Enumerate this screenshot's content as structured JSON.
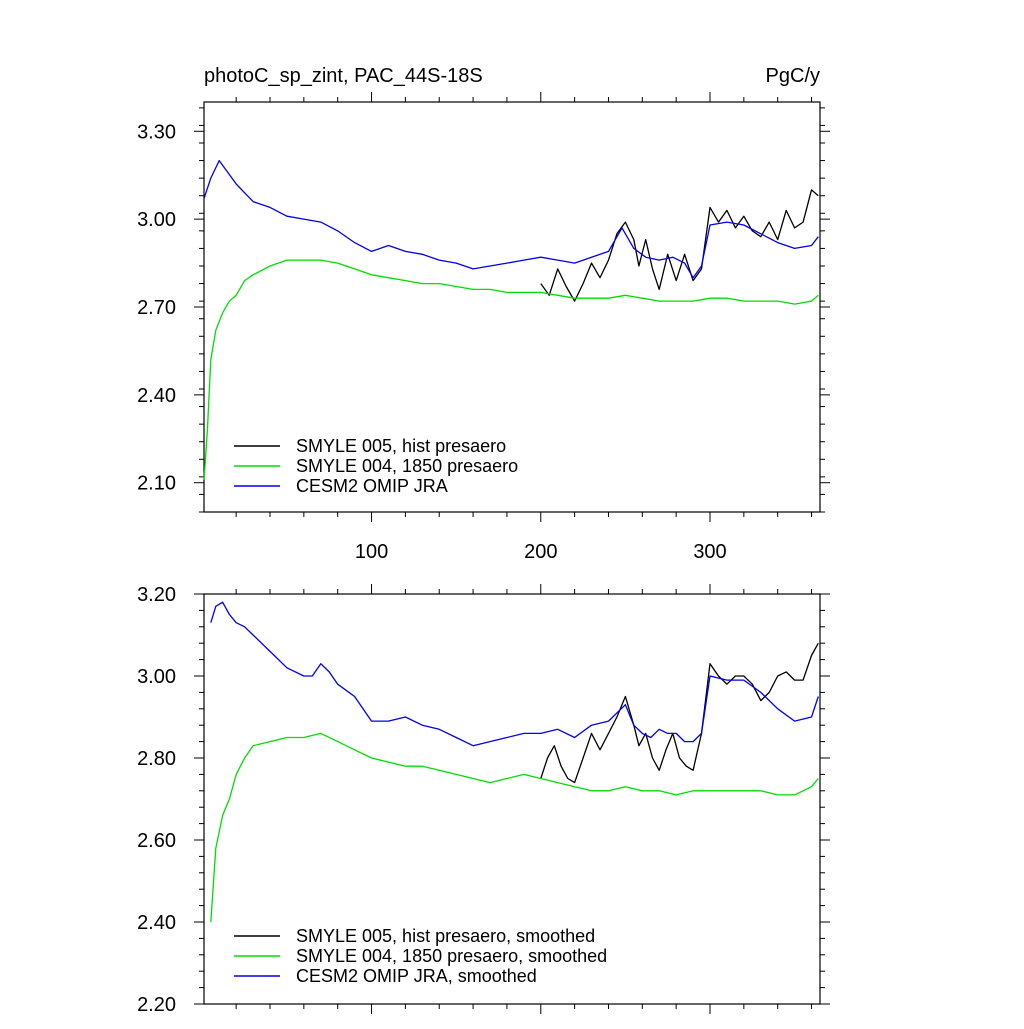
{
  "chart_data": [
    {
      "type": "line",
      "title_left": "photoC_sp_zint, PAC_44S-18S",
      "title_right": "PgC/y",
      "xlabel": "",
      "ylabel": "",
      "xlim": [
        1,
        365
      ],
      "ylim": [
        2.0,
        3.4
      ],
      "xticks": [
        100,
        200,
        300
      ],
      "xtick_labels": [
        "100",
        "200",
        "300"
      ],
      "yticks": [
        2.1,
        2.4,
        2.7,
        3.0,
        3.3
      ],
      "ytick_labels": [
        "2.10",
        "2.40",
        "2.70",
        "3.00",
        "3.30"
      ],
      "grid": false,
      "legend_position": "bottom-left",
      "series": [
        {
          "name": "SMYLE 005, hist presaero",
          "color": "#000000",
          "points": [
            [
              200,
              2.78
            ],
            [
              205,
              2.74
            ],
            [
              210,
              2.83
            ],
            [
              215,
              2.77
            ],
            [
              220,
              2.72
            ],
            [
              225,
              2.78
            ],
            [
              230,
              2.85
            ],
            [
              235,
              2.8
            ],
            [
              240,
              2.86
            ],
            [
              245,
              2.95
            ],
            [
              250,
              2.99
            ],
            [
              255,
              2.93
            ],
            [
              258,
              2.84
            ],
            [
              262,
              2.93
            ],
            [
              266,
              2.83
            ],
            [
              270,
              2.76
            ],
            [
              275,
              2.88
            ],
            [
              280,
              2.79
            ],
            [
              285,
              2.88
            ],
            [
              290,
              2.79
            ],
            [
              295,
              2.83
            ],
            [
              300,
              3.04
            ],
            [
              305,
              2.99
            ],
            [
              310,
              3.03
            ],
            [
              315,
              2.97
            ],
            [
              320,
              3.01
            ],
            [
              325,
              2.96
            ],
            [
              330,
              2.94
            ],
            [
              335,
              2.99
            ],
            [
              340,
              2.93
            ],
            [
              345,
              3.03
            ],
            [
              350,
              2.97
            ],
            [
              355,
              2.99
            ],
            [
              360,
              3.1
            ],
            [
              364,
              3.08
            ]
          ]
        },
        {
          "name": "SMYLE 004, 1850 presaero",
          "color": "#00dd00",
          "points": [
            [
              1,
              2.11
            ],
            [
              3,
              2.28
            ],
            [
              5,
              2.52
            ],
            [
              8,
              2.62
            ],
            [
              12,
              2.68
            ],
            [
              16,
              2.72
            ],
            [
              20,
              2.74
            ],
            [
              25,
              2.79
            ],
            [
              30,
              2.81
            ],
            [
              40,
              2.84
            ],
            [
              50,
              2.86
            ],
            [
              60,
              2.86
            ],
            [
              70,
              2.86
            ],
            [
              80,
              2.85
            ],
            [
              90,
              2.83
            ],
            [
              100,
              2.81
            ],
            [
              110,
              2.8
            ],
            [
              120,
              2.79
            ],
            [
              130,
              2.78
            ],
            [
              140,
              2.78
            ],
            [
              150,
              2.77
            ],
            [
              160,
              2.76
            ],
            [
              170,
              2.76
            ],
            [
              180,
              2.75
            ],
            [
              190,
              2.75
            ],
            [
              200,
              2.75
            ],
            [
              210,
              2.74
            ],
            [
              220,
              2.73
            ],
            [
              230,
              2.73
            ],
            [
              240,
              2.73
            ],
            [
              250,
              2.74
            ],
            [
              260,
              2.73
            ],
            [
              270,
              2.72
            ],
            [
              280,
              2.72
            ],
            [
              290,
              2.72
            ],
            [
              300,
              2.73
            ],
            [
              310,
              2.73
            ],
            [
              320,
              2.72
            ],
            [
              330,
              2.72
            ],
            [
              340,
              2.72
            ],
            [
              350,
              2.71
            ],
            [
              360,
              2.72
            ],
            [
              364,
              2.74
            ]
          ]
        },
        {
          "name": "CESM2 OMIP JRA",
          "color": "#0000ee",
          "points": [
            [
              1,
              3.07
            ],
            [
              5,
              3.14
            ],
            [
              10,
              3.2
            ],
            [
              15,
              3.16
            ],
            [
              20,
              3.12
            ],
            [
              25,
              3.09
            ],
            [
              30,
              3.06
            ],
            [
              40,
              3.04
            ],
            [
              50,
              3.01
            ],
            [
              60,
              3.0
            ],
            [
              70,
              2.99
            ],
            [
              80,
              2.96
            ],
            [
              90,
              2.92
            ],
            [
              100,
              2.89
            ],
            [
              110,
              2.91
            ],
            [
              120,
              2.89
            ],
            [
              130,
              2.88
            ],
            [
              140,
              2.86
            ],
            [
              150,
              2.85
            ],
            [
              160,
              2.83
            ],
            [
              170,
              2.84
            ],
            [
              180,
              2.85
            ],
            [
              190,
              2.86
            ],
            [
              200,
              2.87
            ],
            [
              210,
              2.86
            ],
            [
              220,
              2.85
            ],
            [
              230,
              2.87
            ],
            [
              240,
              2.89
            ],
            [
              248,
              2.97
            ],
            [
              255,
              2.9
            ],
            [
              262,
              2.87
            ],
            [
              270,
              2.86
            ],
            [
              278,
              2.87
            ],
            [
              285,
              2.85
            ],
            [
              290,
              2.8
            ],
            [
              295,
              2.84
            ],
            [
              300,
              2.98
            ],
            [
              310,
              2.99
            ],
            [
              320,
              2.98
            ],
            [
              330,
              2.95
            ],
            [
              340,
              2.92
            ],
            [
              350,
              2.9
            ],
            [
              360,
              2.91
            ],
            [
              364,
              2.94
            ]
          ]
        }
      ]
    },
    {
      "type": "line",
      "title_left": "",
      "title_right": "",
      "xlabel": "",
      "ylabel": "",
      "xlim": [
        1,
        365
      ],
      "ylim": [
        2.2,
        3.2
      ],
      "xticks": [
        100,
        200,
        300
      ],
      "xtick_labels": [],
      "yticks": [
        2.2,
        2.4,
        2.6,
        2.8,
        3.0,
        3.2
      ],
      "ytick_labels": [
        "2.20",
        "2.40",
        "2.60",
        "2.80",
        "3.00",
        "3.20"
      ],
      "grid": false,
      "legend_position": "bottom-left",
      "series": [
        {
          "name": "SMYLE 005, hist presaero, smoothed",
          "color": "#000000",
          "points": [
            [
              200,
              2.75
            ],
            [
              204,
              2.8
            ],
            [
              208,
              2.83
            ],
            [
              212,
              2.78
            ],
            [
              216,
              2.75
            ],
            [
              220,
              2.74
            ],
            [
              225,
              2.8
            ],
            [
              230,
              2.86
            ],
            [
              235,
              2.82
            ],
            [
              240,
              2.86
            ],
            [
              245,
              2.9
            ],
            [
              250,
              2.95
            ],
            [
              255,
              2.88
            ],
            [
              258,
              2.83
            ],
            [
              262,
              2.86
            ],
            [
              266,
              2.8
            ],
            [
              270,
              2.77
            ],
            [
              274,
              2.82
            ],
            [
              278,
              2.86
            ],
            [
              282,
              2.8
            ],
            [
              286,
              2.78
            ],
            [
              290,
              2.77
            ],
            [
              295,
              2.86
            ],
            [
              300,
              3.03
            ],
            [
              305,
              3.0
            ],
            [
              310,
              2.98
            ],
            [
              315,
              3.0
            ],
            [
              320,
              3.0
            ],
            [
              325,
              2.98
            ],
            [
              330,
              2.94
            ],
            [
              335,
              2.96
            ],
            [
              340,
              3.0
            ],
            [
              345,
              3.01
            ],
            [
              350,
              2.99
            ],
            [
              355,
              2.99
            ],
            [
              360,
              3.05
            ],
            [
              364,
              3.08
            ]
          ]
        },
        {
          "name": "SMYLE 004, 1850 presaero, smoothed",
          "color": "#00dd00",
          "points": [
            [
              5,
              2.4
            ],
            [
              8,
              2.58
            ],
            [
              12,
              2.66
            ],
            [
              16,
              2.7
            ],
            [
              20,
              2.76
            ],
            [
              25,
              2.8
            ],
            [
              30,
              2.83
            ],
            [
              40,
              2.84
            ],
            [
              50,
              2.85
            ],
            [
              60,
              2.85
            ],
            [
              70,
              2.86
            ],
            [
              80,
              2.84
            ],
            [
              90,
              2.82
            ],
            [
              100,
              2.8
            ],
            [
              110,
              2.79
            ],
            [
              120,
              2.78
            ],
            [
              130,
              2.78
            ],
            [
              140,
              2.77
            ],
            [
              150,
              2.76
            ],
            [
              160,
              2.75
            ],
            [
              170,
              2.74
            ],
            [
              180,
              2.75
            ],
            [
              190,
              2.76
            ],
            [
              200,
              2.75
            ],
            [
              210,
              2.74
            ],
            [
              220,
              2.73
            ],
            [
              230,
              2.72
            ],
            [
              240,
              2.72
            ],
            [
              250,
              2.73
            ],
            [
              260,
              2.72
            ],
            [
              270,
              2.72
            ],
            [
              280,
              2.71
            ],
            [
              290,
              2.72
            ],
            [
              300,
              2.72
            ],
            [
              310,
              2.72
            ],
            [
              320,
              2.72
            ],
            [
              330,
              2.72
            ],
            [
              340,
              2.71
            ],
            [
              350,
              2.71
            ],
            [
              360,
              2.73
            ],
            [
              364,
              2.75
            ]
          ]
        },
        {
          "name": "CESM2 OMIP JRA, smoothed",
          "color": "#0000ee",
          "points": [
            [
              5,
              3.13
            ],
            [
              8,
              3.17
            ],
            [
              12,
              3.18
            ],
            [
              16,
              3.15
            ],
            [
              20,
              3.13
            ],
            [
              25,
              3.12
            ],
            [
              30,
              3.1
            ],
            [
              40,
              3.06
            ],
            [
              50,
              3.02
            ],
            [
              60,
              3.0
            ],
            [
              65,
              3.0
            ],
            [
              70,
              3.03
            ],
            [
              75,
              3.01
            ],
            [
              80,
              2.98
            ],
            [
              90,
              2.95
            ],
            [
              100,
              2.89
            ],
            [
              110,
              2.89
            ],
            [
              120,
              2.9
            ],
            [
              130,
              2.88
            ],
            [
              140,
              2.87
            ],
            [
              150,
              2.85
            ],
            [
              160,
              2.83
            ],
            [
              170,
              2.84
            ],
            [
              180,
              2.85
            ],
            [
              190,
              2.86
            ],
            [
              200,
              2.86
            ],
            [
              210,
              2.87
            ],
            [
              220,
              2.85
            ],
            [
              230,
              2.88
            ],
            [
              240,
              2.89
            ],
            [
              250,
              2.93
            ],
            [
              255,
              2.88
            ],
            [
              260,
              2.86
            ],
            [
              265,
              2.85
            ],
            [
              270,
              2.87
            ],
            [
              275,
              2.86
            ],
            [
              280,
              2.86
            ],
            [
              285,
              2.84
            ],
            [
              290,
              2.84
            ],
            [
              295,
              2.86
            ],
            [
              300,
              3.0
            ],
            [
              310,
              2.99
            ],
            [
              320,
              2.99
            ],
            [
              330,
              2.96
            ],
            [
              340,
              2.92
            ],
            [
              350,
              2.89
            ],
            [
              360,
              2.9
            ],
            [
              364,
              2.95
            ]
          ]
        }
      ]
    }
  ]
}
